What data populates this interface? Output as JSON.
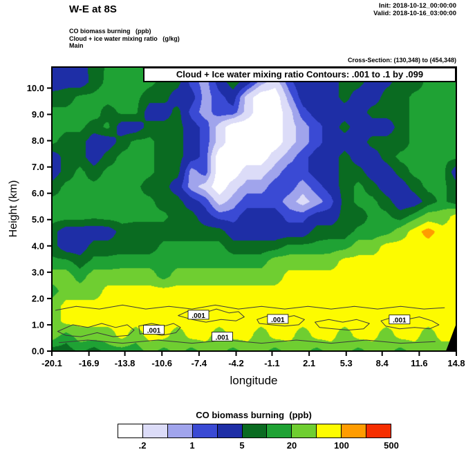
{
  "header": {
    "title": "W-E at 8S",
    "init_label": "Init: 2018-10-12_00:00:00",
    "valid_label": "Valid: 2018-10-16_03:00:00",
    "field1": "CO biomass burning   (ppb)",
    "field2": "Cloud + ice water mixing ratio   (g/kg)",
    "field3": "Main",
    "cross_section": "Cross-Section: (130,348) to (454,348)"
  },
  "plot": {
    "contour_title": "Cloud + Ice water mixing ratio Contours: .001 to .1 by .099",
    "xlabel": "longitude",
    "ylabel": "Height (km)",
    "x_ticks": [
      "-20.1",
      "-16.9",
      "-13.8",
      "-10.6",
      "-7.4",
      "-4.2",
      "-1.1",
      "2.1",
      "5.3",
      "8.4",
      "11.6",
      "14.8"
    ],
    "y_ticks": [
      "0.0",
      "1.0",
      "2.0",
      "3.0",
      "4.0",
      "5.0",
      "6.0",
      "7.0",
      "8.0",
      "9.0",
      "10.0"
    ]
  },
  "legend": {
    "title": "CO biomass burning  (ppb)",
    "labels": [
      ".2",
      "1",
      "5",
      "20",
      "100",
      "500"
    ]
  },
  "chart_data": {
    "type": "heatmap",
    "title": "W-E at 8S",
    "subtitle": "CO biomass burning (ppb) shaded; cloud + ice water mixing ratio (g/kg) contoured .001 to .1 by .099",
    "xlabel": "longitude",
    "ylabel": "Height (km)",
    "x_range": [
      -20.1,
      14.8
    ],
    "y_range": [
      0,
      10.8
    ],
    "x_tick_values": [
      -20.1,
      -16.9,
      -13.8,
      -10.6,
      -7.4,
      -4.2,
      -1.1,
      2.1,
      5.3,
      8.4,
      11.6,
      14.8
    ],
    "y_tick_values": [
      0,
      1,
      2,
      3,
      4,
      5,
      6,
      7,
      8,
      9,
      10
    ],
    "units": "ppb",
    "levels": [
      0.2,
      0.5,
      1,
      2,
      5,
      10,
      20,
      50,
      100,
      200,
      500
    ],
    "palette": [
      "#ffffff",
      "#dcdcf8",
      "#a0a4ec",
      "#3a4ad4",
      "#1e2ea6",
      "#0a6b21",
      "#1fa234",
      "#6fce31",
      "#fdfb00",
      "#ff9c00",
      "#f62e00"
    ],
    "grid": {
      "rows": 20,
      "cols": 30,
      "note": "CO ppb, rows from 10.8 km (top) to 0 km (bottom), cols from lon -20.1 to 14.8",
      "values": [
        [
          3,
          3,
          4,
          6,
          12,
          12,
          12,
          8,
          7,
          7,
          3,
          0.7,
          3,
          4,
          3,
          0.8,
          0.3,
          1.5,
          4,
          4,
          3,
          7,
          7,
          3,
          4,
          3,
          7,
          12,
          12,
          14
        ],
        [
          3,
          4,
          3,
          7,
          12,
          14,
          14,
          12,
          8,
          7,
          1.5,
          0.7,
          3,
          8,
          3,
          0.7,
          0.3,
          1.5,
          4,
          4,
          3,
          7,
          7,
          3,
          4,
          7,
          7,
          12,
          14,
          14
        ],
        [
          7,
          7,
          12,
          12,
          14,
          14,
          12,
          7,
          7,
          3,
          3,
          0.7,
          1.5,
          3,
          0.35,
          0.1,
          0.1,
          0.7,
          3,
          4,
          3,
          7,
          3,
          3,
          7,
          7,
          12,
          12,
          14,
          14
        ],
        [
          12,
          12,
          14,
          14,
          7,
          12,
          12,
          3,
          3,
          7,
          1.5,
          0.7,
          1.5,
          1.5,
          0.35,
          0.1,
          0.1,
          0.35,
          1.5,
          3,
          3,
          3,
          3,
          7,
          7,
          7,
          12,
          14,
          14,
          12
        ],
        [
          14,
          12,
          12,
          7,
          12,
          3,
          3,
          7,
          7,
          7,
          3,
          1.5,
          0.35,
          0.1,
          0.1,
          0.1,
          0.1,
          0.35,
          0.7,
          1.5,
          3,
          7,
          3,
          3,
          3,
          7,
          12,
          12,
          14,
          12
        ],
        [
          12,
          7,
          7,
          3,
          3,
          7,
          12,
          12,
          7,
          7,
          3,
          1.5,
          0.35,
          0.1,
          0.1,
          0.1,
          0.1,
          0.35,
          0.7,
          1.5,
          3,
          3,
          3,
          7,
          7,
          7,
          12,
          14,
          14,
          12
        ],
        [
          3,
          7,
          7,
          3,
          7,
          12,
          12,
          12,
          7,
          7,
          3,
          1.5,
          0.1,
          0.1,
          0.1,
          0.1,
          0.35,
          0.7,
          1.5,
          3,
          3,
          7,
          3,
          3,
          7,
          12,
          12,
          14,
          12,
          12
        ],
        [
          3,
          7,
          12,
          7,
          12,
          12,
          14,
          12,
          7,
          7,
          0.7,
          1.5,
          0.1,
          0.1,
          0.35,
          0.35,
          0.7,
          1.5,
          1.5,
          3,
          3,
          7,
          7,
          3,
          3,
          7,
          12,
          12,
          14,
          3
        ],
        [
          7,
          12,
          12,
          12,
          14,
          14,
          12,
          7,
          7,
          3,
          0.7,
          0.35,
          0.1,
          0.35,
          0.7,
          0.7,
          1.5,
          1.5,
          0.7,
          1.5,
          3,
          7,
          12,
          7,
          3,
          3,
          7,
          12,
          12,
          7
        ],
        [
          12,
          12,
          14,
          14,
          14,
          12,
          12,
          12,
          7,
          7,
          3,
          1.5,
          0.35,
          0.7,
          1.5,
          1.5,
          1.5,
          0.7,
          0.35,
          0.7,
          1.5,
          7,
          12,
          12,
          7,
          3,
          3,
          7,
          12,
          7
        ],
        [
          14,
          14,
          14,
          12,
          14,
          14,
          12,
          12,
          12,
          7,
          7,
          3,
          1.5,
          1.5,
          3,
          3,
          3,
          1.5,
          1.5,
          3,
          3,
          7,
          7,
          12,
          12,
          7,
          14,
          30,
          30,
          70
        ],
        [
          7,
          3,
          3,
          3,
          3,
          7,
          7,
          7,
          7,
          7,
          7,
          7,
          7,
          3,
          3,
          3,
          3,
          3,
          3,
          7,
          7,
          7,
          12,
          12,
          14,
          30,
          70,
          140,
          70,
          70
        ],
        [
          7,
          3,
          3,
          7,
          7,
          7,
          7,
          7,
          12,
          12,
          12,
          12,
          12,
          7,
          7,
          7,
          7,
          12,
          12,
          12,
          14,
          14,
          30,
          30,
          70,
          70,
          70,
          70,
          70,
          70
        ],
        [
          12,
          12,
          7,
          12,
          12,
          14,
          14,
          14,
          14,
          14,
          14,
          14,
          14,
          14,
          14,
          14,
          30,
          30,
          30,
          30,
          30,
          70,
          70,
          70,
          70,
          70,
          70,
          70,
          70,
          70
        ],
        [
          30,
          30,
          14,
          30,
          30,
          30,
          30,
          30,
          14,
          30,
          30,
          30,
          30,
          30,
          30,
          30,
          30,
          70,
          70,
          70,
          70,
          70,
          70,
          70,
          70,
          70,
          70,
          70,
          70,
          70
        ],
        [
          14,
          30,
          30,
          30,
          70,
          70,
          70,
          70,
          70,
          70,
          70,
          70,
          70,
          70,
          70,
          70,
          70,
          70,
          70,
          70,
          70,
          70,
          70,
          70,
          70,
          70,
          70,
          70,
          70,
          70
        ],
        [
          30,
          70,
          70,
          70,
          70,
          70,
          70,
          70,
          70,
          70,
          70,
          70,
          70,
          70,
          70,
          70,
          70,
          70,
          70,
          70,
          70,
          70,
          70,
          70,
          70,
          70,
          70,
          70,
          70,
          70
        ],
        [
          30,
          70,
          70,
          70,
          70,
          70,
          70,
          70,
          70,
          70,
          70,
          70,
          70,
          70,
          70,
          70,
          70,
          70,
          70,
          70,
          70,
          70,
          70,
          70,
          70,
          70,
          70,
          70,
          70,
          70
        ],
        [
          30,
          14,
          30,
          30,
          30,
          70,
          30,
          70,
          70,
          30,
          70,
          70,
          30,
          70,
          70,
          30,
          70,
          70,
          30,
          70,
          70,
          30,
          70,
          70,
          30,
          70,
          70,
          30,
          70,
          70
        ],
        [
          7,
          7,
          12,
          7,
          14,
          14,
          12,
          30,
          14,
          30,
          14,
          30,
          30,
          14,
          30,
          30,
          14,
          30,
          30,
          14,
          30,
          30,
          14,
          30,
          30,
          14,
          30,
          30,
          30,
          30
        ]
      ]
    },
    "cloud_contours": {
      "variable": "Cloud + Ice water mixing ratio (g/kg)",
      "contour_levels": [
        0.001,
        0.1
      ],
      "loops": [
        [
          [
            -19.6,
            0.75
          ],
          [
            -18.3,
            1.0
          ],
          [
            -17.0,
            0.9
          ],
          [
            -15.8,
            1.05
          ],
          [
            -14.6,
            0.9
          ],
          [
            -13.6,
            1.0
          ],
          [
            -13.0,
            0.8
          ],
          [
            -13.5,
            0.6
          ],
          [
            -14.8,
            0.55
          ],
          [
            -16.2,
            0.7
          ],
          [
            -17.6,
            0.55
          ],
          [
            -18.9,
            0.6
          ]
        ],
        [
          [
            -12.6,
            0.95
          ],
          [
            -11.5,
            1.05
          ],
          [
            -10.4,
            0.95
          ],
          [
            -9.6,
            1.05
          ],
          [
            -9.0,
            0.9
          ],
          [
            -9.4,
            0.7
          ],
          [
            -10.6,
            0.6
          ],
          [
            -11.8,
            0.7
          ],
          [
            -12.5,
            0.65
          ]
        ],
        [
          [
            -9.2,
            1.35
          ],
          [
            -8.2,
            1.55
          ],
          [
            -7.0,
            1.45
          ],
          [
            -5.9,
            1.6
          ],
          [
            -4.8,
            1.45
          ],
          [
            -4.0,
            1.5
          ],
          [
            -3.5,
            1.3
          ],
          [
            -4.2,
            1.15
          ],
          [
            -5.5,
            1.2
          ],
          [
            -6.8,
            1.1
          ],
          [
            -8.0,
            1.2
          ]
        ],
        [
          [
            -6.3,
            0.55
          ],
          [
            -5.4,
            0.68
          ],
          [
            -4.5,
            0.55
          ],
          [
            -5.0,
            0.4
          ],
          [
            -6.0,
            0.42
          ]
        ],
        [
          [
            -2.4,
            1.2
          ],
          [
            -1.4,
            1.35
          ],
          [
            -0.3,
            1.25
          ],
          [
            0.8,
            1.35
          ],
          [
            1.7,
            1.2
          ],
          [
            1.2,
            1.0
          ],
          [
            0.0,
            0.95
          ],
          [
            -1.2,
            1.0
          ],
          [
            -2.2,
            1.05
          ]
        ],
        [
          [
            2.6,
            1.1
          ],
          [
            3.8,
            1.2
          ],
          [
            5.0,
            1.1
          ],
          [
            6.2,
            1.2
          ],
          [
            7.3,
            1.05
          ],
          [
            6.8,
            0.85
          ],
          [
            5.5,
            0.8
          ],
          [
            4.2,
            0.85
          ],
          [
            3.0,
            0.9
          ]
        ],
        [
          [
            8.3,
            1.15
          ],
          [
            9.4,
            1.3
          ],
          [
            10.5,
            1.2
          ],
          [
            11.6,
            1.3
          ],
          [
            12.7,
            1.15
          ],
          [
            13.3,
            1.0
          ],
          [
            12.5,
            0.85
          ],
          [
            11.2,
            0.9
          ],
          [
            9.9,
            0.85
          ],
          [
            8.7,
            0.95
          ]
        ]
      ],
      "open_lines": [
        [
          [
            -19.8,
            1.55
          ],
          [
            -18.0,
            1.7
          ],
          [
            -16.0,
            1.6
          ],
          [
            -14.0,
            1.75
          ],
          [
            -12.0,
            1.6
          ],
          [
            -10.0,
            1.7
          ],
          [
            -8.0,
            1.6
          ],
          [
            -6.0,
            1.75
          ],
          [
            -4.0,
            1.6
          ],
          [
            -2.0,
            1.7
          ],
          [
            0.0,
            1.6
          ],
          [
            2.0,
            1.7
          ],
          [
            4.0,
            1.6
          ],
          [
            6.0,
            1.7
          ],
          [
            8.0,
            1.6
          ],
          [
            10.0,
            1.7
          ],
          [
            12.0,
            1.6
          ],
          [
            13.8,
            1.65
          ]
        ],
        [
          [
            -19.5,
            0.32
          ],
          [
            -17.0,
            0.42
          ],
          [
            -14.0,
            0.3
          ],
          [
            -11.0,
            0.42
          ],
          [
            -8.0,
            0.3
          ],
          [
            -5.0,
            0.42
          ],
          [
            -2.0,
            0.3
          ],
          [
            1.0,
            0.42
          ],
          [
            4.0,
            0.3
          ],
          [
            7.0,
            0.42
          ],
          [
            10.0,
            0.3
          ],
          [
            13.0,
            0.36
          ]
        ]
      ],
      "labels": [
        {
          "lon": -11.3,
          "h": 0.8,
          "text": ".001"
        },
        {
          "lon": -7.45,
          "h": 1.37,
          "text": ".001"
        },
        {
          "lon": -5.4,
          "h": 0.54,
          "text": ".001"
        },
        {
          "lon": -0.6,
          "h": 1.21,
          "text": ".001"
        },
        {
          "lon": 9.9,
          "h": 1.19,
          "text": ".001"
        }
      ]
    },
    "terrain": [
      [
        13.9,
        0.0
      ],
      [
        14.8,
        1.05
      ],
      [
        14.8,
        0.0
      ]
    ],
    "legend_labels": [
      ".2",
      "1",
      "5",
      "20",
      "100",
      "500"
    ]
  }
}
